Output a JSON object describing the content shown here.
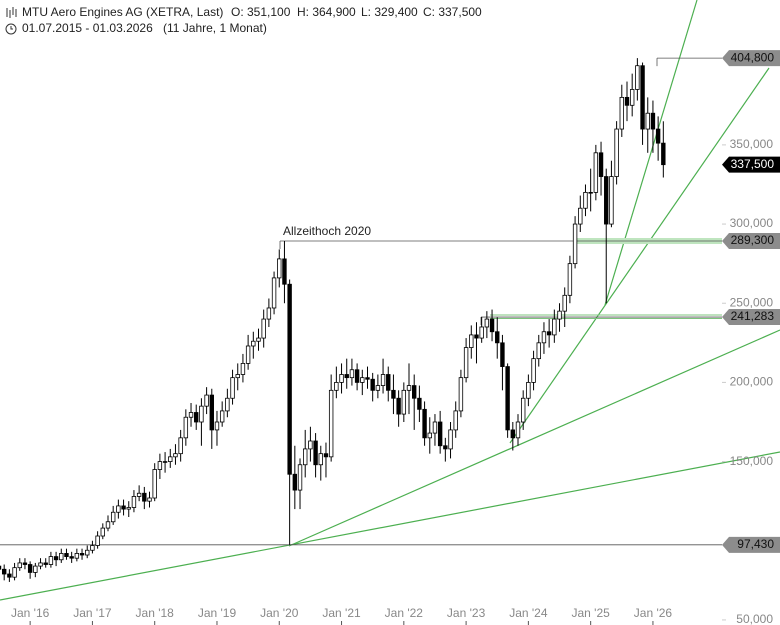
{
  "header": {
    "title": "MTU Aero Engines AG (XETRA, Last)",
    "open": "O: 351,100",
    "high": "H: 364,900",
    "low": "L: 329,400",
    "close": "C: 337,500",
    "range": "01.07.2015 - 01.03.2026",
    "duration": "(11 Jahre, 1 Monat)"
  },
  "chart_data": {
    "type": "candlestick",
    "categories": [
      null,
      null,
      null,
      null,
      null,
      null,
      "Jan '16",
      null,
      null,
      null,
      null,
      null,
      null,
      null,
      null,
      null,
      null,
      null,
      "Jan '17",
      null,
      null,
      null,
      null,
      null,
      null,
      null,
      null,
      null,
      null,
      null,
      "Jan '18",
      null,
      null,
      null,
      null,
      null,
      null,
      null,
      null,
      null,
      null,
      null,
      "Jan '19",
      null,
      null,
      null,
      null,
      null,
      null,
      null,
      null,
      null,
      null,
      null,
      "Jan '20",
      null,
      null,
      null,
      null,
      null,
      null,
      null,
      null,
      null,
      null,
      null,
      "Jan '21",
      null,
      null,
      null,
      null,
      null,
      null,
      null,
      null,
      null,
      null,
      null,
      "Jan '22",
      null,
      null,
      null,
      null,
      null,
      null,
      null,
      null,
      null,
      null,
      null,
      "Jan '23",
      null,
      null,
      null,
      null,
      null,
      null,
      null,
      null,
      null,
      null,
      null,
      "Jan '24",
      null,
      null,
      null,
      null,
      null,
      null,
      null,
      null,
      null,
      null,
      null,
      "Jan '25",
      null,
      null,
      null,
      null,
      null,
      null,
      null,
      null,
      null,
      null,
      null,
      "Jan '26",
      null,
      null
    ],
    "open": [
      84,
      82,
      79,
      77,
      83,
      86,
      85,
      80,
      84,
      86,
      85,
      90,
      88,
      92,
      90,
      89,
      92,
      91,
      94,
      97,
      103,
      108,
      112,
      118,
      122,
      120,
      121,
      128,
      130,
      125,
      127,
      145,
      150,
      150,
      153,
      155,
      165,
      178,
      181,
      175,
      185,
      192,
      170,
      175,
      182,
      190,
      203,
      205,
      212,
      223,
      226,
      228,
      240,
      247,
      266,
      278,
      262,
      142,
      132,
      148,
      158,
      163,
      148,
      155,
      153,
      195,
      200,
      205,
      203,
      208,
      200,
      203,
      202,
      195,
      198,
      205,
      195,
      190,
      180,
      195,
      198,
      190,
      183,
      165,
      168,
      175,
      160,
      158,
      170,
      182,
      203,
      222,
      230,
      228,
      235,
      240,
      232,
      225,
      210,
      170,
      165,
      175,
      190,
      200,
      215,
      225,
      232,
      230,
      240,
      245,
      255,
      275,
      300,
      310,
      320,
      320,
      345,
      330,
      300,
      330,
      360,
      380,
      375,
      385,
      400,
      360,
      370,
      360,
      351.1
    ],
    "high": [
      87,
      85,
      82,
      86,
      89,
      89,
      87,
      86,
      89,
      89,
      93,
      93,
      95,
      95,
      93,
      95,
      95,
      97,
      100,
      106,
      111,
      116,
      122,
      126,
      126,
      125,
      132,
      135,
      134,
      131,
      149,
      155,
      156,
      158,
      161,
      170,
      183,
      187,
      186,
      190,
      197,
      196,
      182,
      188,
      196,
      208,
      212,
      218,
      230,
      232,
      234,
      246,
      253,
      270,
      284,
      289.3,
      265,
      160,
      152,
      170,
      172,
      168,
      160,
      162,
      205,
      210,
      212,
      215,
      215,
      212,
      208,
      210,
      206,
      205,
      215,
      210,
      205,
      195,
      200,
      212,
      205,
      198,
      188,
      178,
      180,
      182,
      165,
      175,
      188,
      208,
      228,
      236,
      238,
      241.3,
      245,
      246,
      241,
      230,
      212,
      175,
      180,
      195,
      205,
      220,
      230,
      238,
      240,
      246,
      250,
      260,
      280,
      305,
      318,
      325,
      335,
      350,
      352,
      335,
      340,
      365,
      388,
      390,
      395,
      404.8,
      402,
      380,
      378,
      368,
      364.9
    ],
    "low": [
      79,
      75,
      74,
      75,
      81,
      82,
      76,
      77,
      82,
      83,
      83,
      84,
      86,
      88,
      86,
      87,
      88,
      89,
      92,
      95,
      101,
      106,
      110,
      114,
      116,
      115,
      118,
      125,
      120,
      121,
      125,
      139,
      143,
      146,
      148,
      150,
      160,
      172,
      170,
      160,
      180,
      158,
      160,
      172,
      178,
      186,
      195,
      200,
      208,
      215,
      220,
      222,
      235,
      243,
      260,
      250,
      97.43,
      120,
      120,
      140,
      150,
      140,
      138,
      140,
      150,
      190,
      193,
      196,
      198,
      195,
      192,
      196,
      188,
      190,
      193,
      188,
      180,
      172,
      175,
      180,
      170,
      175,
      160,
      155,
      160,
      155,
      150,
      152,
      165,
      178,
      200,
      215,
      212,
      225,
      228,
      226,
      215,
      195,
      165,
      157,
      160,
      170,
      185,
      195,
      210,
      218,
      222,
      225,
      232,
      235,
      250,
      272,
      295,
      305,
      308,
      315,
      318,
      250,
      298,
      325,
      355,
      365,
      368,
      378,
      350,
      345,
      345,
      340,
      329.4
    ],
    "close": [
      82,
      79,
      77,
      83,
      86,
      85,
      80,
      84,
      86,
      85,
      90,
      88,
      92,
      90,
      89,
      92,
      91,
      94,
      97,
      103,
      108,
      112,
      118,
      122,
      120,
      121,
      128,
      130,
      125,
      127,
      145,
      150,
      150,
      153,
      155,
      165,
      178,
      181,
      175,
      185,
      192,
      170,
      175,
      182,
      190,
      203,
      205,
      212,
      223,
      226,
      228,
      240,
      247,
      266,
      278,
      262,
      142,
      132,
      148,
      158,
      163,
      148,
      155,
      153,
      195,
      200,
      205,
      203,
      208,
      200,
      203,
      202,
      195,
      198,
      205,
      195,
      190,
      180,
      195,
      198,
      190,
      183,
      165,
      168,
      175,
      160,
      158,
      170,
      182,
      203,
      222,
      230,
      228,
      235,
      240,
      232,
      225,
      210,
      170,
      165,
      175,
      190,
      200,
      215,
      225,
      232,
      230,
      240,
      245,
      255,
      275,
      300,
      310,
      320,
      320,
      345,
      330,
      300,
      330,
      360,
      380,
      375,
      385,
      400,
      360,
      370,
      360,
      351.1,
      337.5
    ],
    "ylim": [
      46.8,
      441.5
    ],
    "yticks": [
      {
        "value": 50,
        "label": "50,000"
      },
      {
        "value": 150,
        "label": "150,000"
      },
      {
        "value": 200,
        "label": "200,000"
      },
      {
        "value": 250,
        "label": "250,000"
      },
      {
        "value": 300,
        "label": "300,000"
      },
      {
        "value": 350,
        "label": "350,000"
      }
    ],
    "levels": [
      {
        "value": 404.8,
        "label": "404,800"
      },
      {
        "value": 289.3,
        "label": "289,300"
      },
      {
        "value": 241.283,
        "label": "241,283"
      },
      {
        "value": 97.43,
        "label": "97,430"
      }
    ],
    "last": {
      "value": 337.5,
      "label": "337,500"
    },
    "annotation": "Allzeithoch 2020"
  }
}
